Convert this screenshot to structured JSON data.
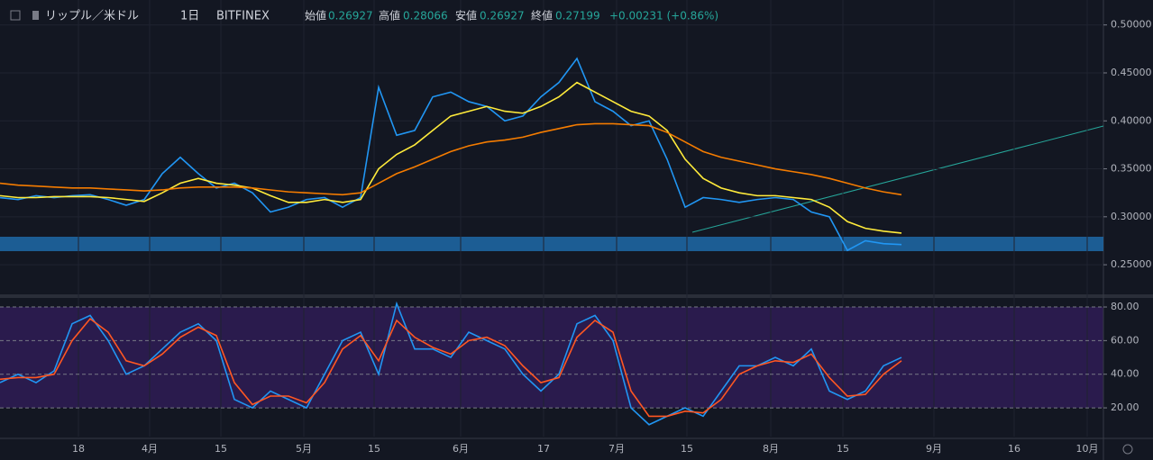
{
  "header": {
    "symbol": "リップル／米ドル",
    "interval": "1日",
    "exchange": "BITFINEX",
    "open_label": "始値",
    "open": "0.26927",
    "high_label": "高値",
    "high": "0.28066",
    "low_label": "安値",
    "low": "0.26927",
    "close_label": "終値",
    "close": "0.27199",
    "change": "+0.00231 (+0.86%)"
  },
  "chart_data": [
    {
      "type": "line",
      "xlim": [
        0,
        61.2
      ],
      "ylim": [
        0.221,
        0.526
      ],
      "yticks": [
        {
          "value": 0.5,
          "label": "0.50000"
        },
        {
          "value": 0.45,
          "label": "0.45000"
        },
        {
          "value": 0.4,
          "label": "0.40000"
        },
        {
          "value": 0.35,
          "label": "0.35000"
        },
        {
          "value": 0.3,
          "label": "0.30000"
        },
        {
          "value": 0.25,
          "label": "0.25000"
        }
      ],
      "xticks": [
        {
          "value": 4.35,
          "label": "18"
        },
        {
          "value": 8.3,
          "label": "4月"
        },
        {
          "value": 12.25,
          "label": "15"
        },
        {
          "value": 16.85,
          "label": "5月"
        },
        {
          "value": 20.75,
          "label": "15"
        },
        {
          "value": 25.55,
          "label": "6月"
        },
        {
          "value": 30.15,
          "label": "17"
        },
        {
          "value": 34.2,
          "label": "7月"
        },
        {
          "value": 38.1,
          "label": "15"
        },
        {
          "value": 42.75,
          "label": "8月"
        },
        {
          "value": 46.75,
          "label": "15"
        },
        {
          "value": 51.8,
          "label": "9月"
        },
        {
          "value": 56.25,
          "label": "16"
        },
        {
          "value": 60.3,
          "label": "10月"
        }
      ],
      "series": [
        {
          "color": "#2196f3",
          "values": [
            0.32,
            0.318,
            0.322,
            0.32,
            0.322,
            0.323,
            0.318,
            0.312,
            0.318,
            0.345,
            0.362,
            0.345,
            0.33,
            0.335,
            0.325,
            0.305,
            0.31,
            0.318,
            0.32,
            0.31,
            0.32,
            0.435,
            0.385,
            0.39,
            0.425,
            0.43,
            0.42,
            0.415,
            0.4,
            0.405,
            0.425,
            0.44,
            0.465,
            0.42,
            0.41,
            0.395,
            0.4,
            0.36,
            0.31,
            0.32,
            0.318,
            0.315,
            0.318,
            0.32,
            0.318,
            0.305,
            0.3,
            0.265,
            0.275,
            0.272,
            0.271
          ]
        },
        {
          "color": "#ffeb3b",
          "values": [
            0.322,
            0.32,
            0.32,
            0.321,
            0.321,
            0.321,
            0.32,
            0.318,
            0.316,
            0.325,
            0.335,
            0.34,
            0.335,
            0.333,
            0.33,
            0.322,
            0.315,
            0.315,
            0.318,
            0.315,
            0.318,
            0.35,
            0.365,
            0.375,
            0.39,
            0.405,
            0.41,
            0.415,
            0.41,
            0.408,
            0.415,
            0.425,
            0.44,
            0.43,
            0.42,
            0.41,
            0.405,
            0.39,
            0.36,
            0.34,
            0.33,
            0.325,
            0.322,
            0.322,
            0.32,
            0.318,
            0.31,
            0.295,
            0.288,
            0.285,
            0.283
          ]
        },
        {
          "color": "#f57c00",
          "values": [
            0.335,
            0.333,
            0.332,
            0.331,
            0.33,
            0.33,
            0.329,
            0.328,
            0.327,
            0.328,
            0.33,
            0.331,
            0.331,
            0.331,
            0.33,
            0.328,
            0.326,
            0.325,
            0.324,
            0.323,
            0.325,
            0.335,
            0.345,
            0.352,
            0.36,
            0.368,
            0.374,
            0.378,
            0.38,
            0.383,
            0.388,
            0.392,
            0.396,
            0.397,
            0.397,
            0.396,
            0.395,
            0.388,
            0.378,
            0.368,
            0.362,
            0.358,
            0.354,
            0.35,
            0.347,
            0.344,
            0.34,
            0.335,
            0.33,
            0.326,
            0.323
          ]
        }
      ]
    },
    {
      "type": "line",
      "xlim": [
        0,
        61.2
      ],
      "ylim": [
        2.9,
        84.3
      ],
      "yticks": [
        {
          "value": 80,
          "label": "80.00"
        },
        {
          "value": 60,
          "label": "60.00"
        },
        {
          "value": 40,
          "label": "40.00"
        },
        {
          "value": 20,
          "label": "20.00"
        }
      ],
      "series": [
        {
          "color": "#2196f3",
          "values": [
            35,
            40,
            35,
            42,
            70,
            75,
            60,
            40,
            45,
            55,
            65,
            70,
            60,
            25,
            20,
            30,
            25,
            20,
            40,
            60,
            65,
            40,
            82,
            55,
            55,
            50,
            65,
            60,
            55,
            40,
            30,
            40,
            70,
            75,
            60,
            20,
            10,
            15,
            20,
            15,
            30,
            45,
            45,
            50,
            45,
            55,
            30,
            25,
            30,
            45,
            50
          ]
        },
        {
          "color": "#ff5722",
          "values": [
            37,
            38,
            38,
            40,
            60,
            73,
            65,
            48,
            45,
            52,
            62,
            68,
            63,
            35,
            22,
            27,
            27,
            23,
            35,
            55,
            63,
            48,
            72,
            62,
            56,
            52,
            60,
            62,
            57,
            45,
            35,
            38,
            62,
            72,
            65,
            30,
            15,
            15,
            18,
            17,
            25,
            40,
            45,
            48,
            47,
            52,
            38,
            27,
            28,
            40,
            48
          ]
        }
      ]
    }
  ]
}
